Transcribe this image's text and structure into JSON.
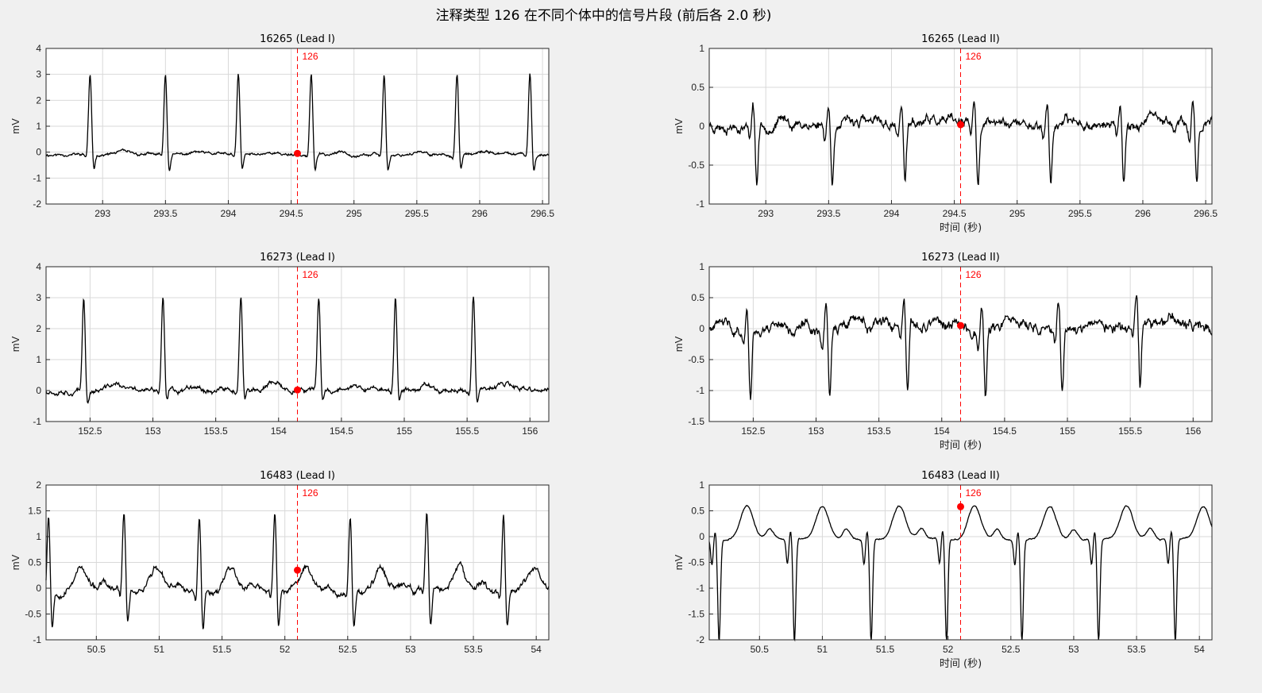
{
  "figure_title": "注释类型 126 在不同个体中的信号片段 (前后各 2.0 秒)",
  "colors": {
    "signal": "#000000",
    "marker": "#ff0000",
    "grid": "#d9d9d9",
    "background": "#f0f0f0",
    "axes": "#ffffff"
  },
  "chart_data": [
    {
      "type": "line",
      "title": "16265 (Lead I)",
      "xlabel": "",
      "ylabel": "mV",
      "xlim": [
        292.55,
        296.55
      ],
      "ylim": [
        -2,
        4
      ],
      "xticks": [
        293,
        293.5,
        294,
        294.5,
        295,
        295.5,
        296,
        296.5
      ],
      "xtick_labels": [
        "293",
        "293.5",
        "294",
        "294.5",
        "295",
        "295.5",
        "296",
        "296.5"
      ],
      "yticks": [
        -2,
        -1,
        0,
        1,
        2,
        3,
        4
      ],
      "ytick_labels": [
        "-2",
        "-1",
        "0",
        "1",
        "2",
        "3",
        "4"
      ],
      "annotation": {
        "x": 294.55,
        "y": -0.05,
        "label": "126"
      },
      "signal": {
        "baseline": -0.1,
        "r_peaks": [
          292.9,
          293.5,
          294.08,
          294.66,
          295.24,
          295.82,
          296.4
        ],
        "r_amp": 3.1,
        "s_amp": -0.7,
        "t_amp": 0.1,
        "noise": 0.06,
        "seed": 11
      },
      "grid": true
    },
    {
      "type": "line",
      "title": "16265 (Lead II)",
      "xlabel": "时间 (秒)",
      "ylabel": "mV",
      "xlim": [
        292.55,
        296.55
      ],
      "ylim": [
        -1,
        1
      ],
      "xticks": [
        293,
        293.5,
        294,
        294.5,
        295,
        295.5,
        296,
        296.5
      ],
      "xtick_labels": [
        "293",
        "293.5",
        "294",
        "294.5",
        "295",
        "295.5",
        "296",
        "296.5"
      ],
      "yticks": [
        -1,
        -0.5,
        0,
        0.5,
        1
      ],
      "ytick_labels": [
        "-1",
        "-0.5",
        "0",
        "0.5",
        "1"
      ],
      "annotation": {
        "x": 294.55,
        "y": 0.02,
        "label": "126"
      },
      "signal": {
        "baseline": 0.02,
        "r_peaks": [
          292.9,
          293.5,
          294.08,
          294.66,
          295.24,
          295.82,
          296.4
        ],
        "r_amp": 0.3,
        "s_amp": -0.75,
        "t_amp": 0.05,
        "noise": 0.07,
        "seed": 23
      },
      "grid": true
    },
    {
      "type": "line",
      "title": "16273 (Lead I)",
      "xlabel": "",
      "ylabel": "mV",
      "xlim": [
        152.15,
        156.15
      ],
      "ylim": [
        -1,
        4
      ],
      "xticks": [
        152.5,
        153,
        153.5,
        154,
        154.5,
        155,
        155.5,
        156
      ],
      "xtick_labels": [
        "152.5",
        "153",
        "153.5",
        "154",
        "154.5",
        "155",
        "155.5",
        "156"
      ],
      "yticks": [
        -1,
        0,
        1,
        2,
        3,
        4
      ],
      "ytick_labels": [
        "-1",
        "0",
        "1",
        "2",
        "3",
        "4"
      ],
      "annotation": {
        "x": 154.15,
        "y": 0.02,
        "label": "126"
      },
      "signal": {
        "baseline": 0.0,
        "r_peaks": [
          152.45,
          153.08,
          153.7,
          154.32,
          154.93,
          155.55
        ],
        "r_amp": 3.0,
        "s_amp": -0.5,
        "t_amp": 0.2,
        "noise": 0.09,
        "seed": 37
      },
      "grid": true
    },
    {
      "type": "line",
      "title": "16273 (Lead II)",
      "xlabel": "时间 (秒)",
      "ylabel": "mV",
      "xlim": [
        152.15,
        156.15
      ],
      "ylim": [
        -1.5,
        1
      ],
      "xticks": [
        152.5,
        153,
        153.5,
        154,
        154.5,
        155,
        155.5,
        156
      ],
      "xtick_labels": [
        "152.5",
        "153",
        "153.5",
        "154",
        "154.5",
        "155",
        "155.5",
        "156"
      ],
      "yticks": [
        -1.5,
        -1,
        -0.5,
        0,
        0.5,
        1
      ],
      "ytick_labels": [
        "-1.5",
        "-1",
        "-0.5",
        "0",
        "0.5",
        "1"
      ],
      "annotation": {
        "x": 154.15,
        "y": 0.05,
        "label": "126"
      },
      "signal": {
        "baseline": 0.0,
        "r_peaks": [
          152.45,
          153.08,
          153.7,
          154.32,
          154.93,
          155.55
        ],
        "r_amp": 0.4,
        "s_amp": -1.1,
        "t_amp": 0.15,
        "noise": 0.1,
        "seed": 41
      },
      "grid": true
    },
    {
      "type": "line",
      "title": "16483 (Lead I)",
      "xlabel": "",
      "ylabel": "mV",
      "xlim": [
        50.1,
        54.1
      ],
      "ylim": [
        -1,
        2
      ],
      "xticks": [
        50.5,
        51,
        51.5,
        52,
        52.5,
        53,
        53.5,
        54
      ],
      "xtick_labels": [
        "50.5",
        "51",
        "51.5",
        "52",
        "52.5",
        "53",
        "53.5",
        "54"
      ],
      "yticks": [
        -1,
        -0.5,
        0,
        0.5,
        1,
        1.5,
        2
      ],
      "ytick_labels": [
        "-1",
        "-0.5",
        "0",
        "0.5",
        "1",
        "1.5",
        "2"
      ],
      "annotation": {
        "x": 52.1,
        "y": 0.35,
        "label": "126"
      },
      "signal": {
        "baseline": -0.05,
        "r_peaks": [
          50.12,
          50.72,
          51.32,
          51.92,
          52.52,
          53.13,
          53.74
        ],
        "r_amp": 1.5,
        "s_amp": -0.75,
        "t_amp": 0.45,
        "noise": 0.07,
        "seed": 53
      },
      "grid": true
    },
    {
      "type": "line",
      "title": "16483 (Lead II)",
      "xlabel": "时间 (秒)",
      "ylabel": "mV",
      "xlim": [
        50.1,
        54.1
      ],
      "ylim": [
        -2,
        1
      ],
      "xticks": [
        50.5,
        51,
        51.5,
        52,
        52.5,
        53,
        53.5,
        54
      ],
      "xtick_labels": [
        "50.5",
        "51",
        "51.5",
        "52",
        "52.5",
        "53",
        "53.5",
        "54"
      ],
      "yticks": [
        -2,
        -1.5,
        -1,
        -0.5,
        0,
        0.5,
        1
      ],
      "ytick_labels": [
        "-2",
        "-1.5",
        "-1",
        "-0.5",
        "0",
        "0.5",
        "1"
      ],
      "annotation": {
        "x": 52.1,
        "y": 0.58,
        "label": "126"
      },
      "signal": {
        "baseline": -0.05,
        "r_peaks": [
          50.15,
          50.75,
          51.36,
          51.96,
          52.56,
          53.17,
          53.78
        ],
        "r_amp": 0.2,
        "s_amp": -2.0,
        "t_amp": 0.65,
        "noise": 0.015,
        "seed": 67
      },
      "grid": true
    }
  ]
}
